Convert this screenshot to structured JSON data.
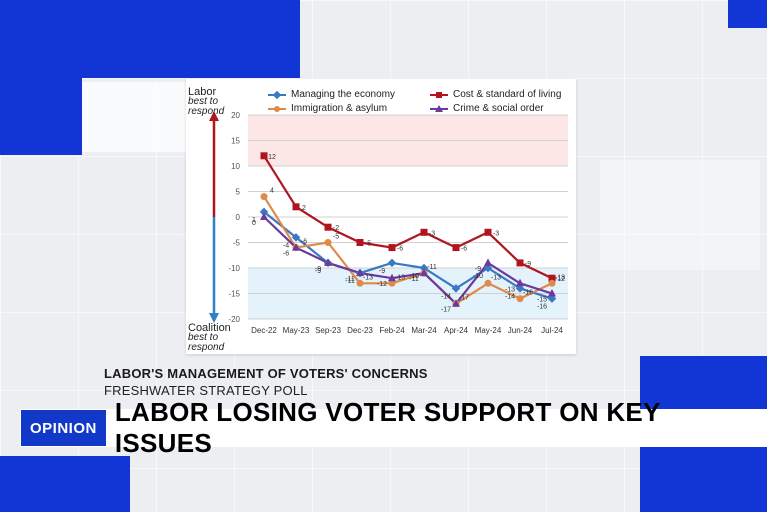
{
  "caption": {
    "title": "LABOR'S MANAGEMENT OF VOTERS' CONCERNS",
    "subtitle": "FRESHWATER STRATEGY POLL"
  },
  "lower_third": {
    "tag": "OPINION",
    "headline": "LABOR LOSING VOTER SUPPORT ON KEY ISSUES"
  },
  "chart_data": {
    "type": "line",
    "categories": [
      "Dec-22",
      "May-23",
      "Sep-23",
      "Dec-23",
      "Feb-24",
      "Mar-24",
      "Apr-24",
      "May-24",
      "Jun-24",
      "Jul-24"
    ],
    "ylim": [
      -20,
      20
    ],
    "yticks": [
      20,
      15,
      10,
      5,
      0,
      -5,
      -10,
      -15,
      -20
    ],
    "grid": true,
    "legend_position": "top",
    "top_label": {
      "main": "Labor",
      "sub": "best to respond"
    },
    "bottom_label": {
      "main": "Coalition",
      "sub": "best to respond"
    },
    "series": [
      {
        "name": "Managing the economy",
        "color": "#3a78c3",
        "marker": "diamond",
        "values": [
          1,
          -4,
          -9,
          -11,
          -9,
          -10,
          -14,
          -10,
          -14,
          -16
        ]
      },
      {
        "name": "Cost & standard of living",
        "color": "#b0141f",
        "marker": "square",
        "values": [
          12,
          2,
          -2,
          -5,
          -6,
          -3,
          -6,
          -3,
          -9,
          -12
        ]
      },
      {
        "name": "Immigration & asylum",
        "color": "#e08a4a",
        "marker": "circle",
        "values": [
          4,
          -6,
          -5,
          -13,
          -13,
          -11,
          -17,
          -13,
          -16,
          -13
        ]
      },
      {
        "name": "Crime & social order",
        "color": "#6a3a9c",
        "marker": "triangle",
        "values": [
          0,
          -6,
          -9,
          -11,
          -12,
          -11,
          -17,
          -9,
          -13,
          -15
        ]
      }
    ],
    "colors": {
      "band_top": "#fde6e6",
      "band_bottom": "#e3f2fb",
      "arrow_top": "#b0141f",
      "arrow_bottom": "#2f80c6"
    }
  }
}
